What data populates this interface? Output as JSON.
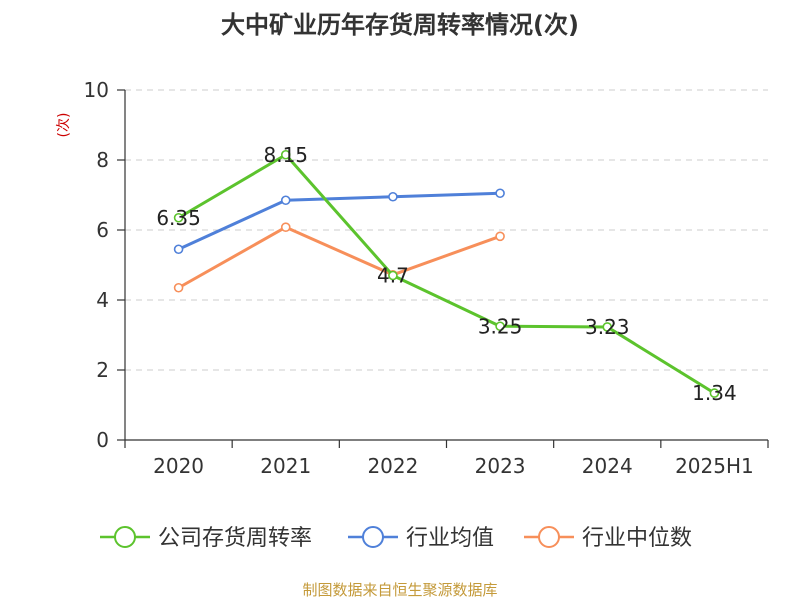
{
  "chart_data": {
    "type": "line",
    "title": "大中矿业历年存货周转率情况(次)",
    "ylabel": "(次)",
    "categories": [
      "2020",
      "2021",
      "2022",
      "2023",
      "2024",
      "2025H1"
    ],
    "ylim": [
      0,
      10
    ],
    "yticks": [
      "0",
      "2",
      "4",
      "6",
      "8",
      "10"
    ],
    "grid": true,
    "legend_position": "bottom",
    "series": [
      {
        "name": "公司存货周转率",
        "color": "#5cc32d",
        "values": [
          6.35,
          8.15,
          4.7,
          3.25,
          3.23,
          1.34
        ],
        "labels": [
          "6.35",
          "8.15",
          "4.7",
          "3.25",
          "3.23",
          "1.34"
        ]
      },
      {
        "name": "行业均值",
        "color": "#4f80d9",
        "values": [
          5.45,
          6.85,
          6.95,
          7.05,
          null,
          null
        ]
      },
      {
        "name": "行业中位数",
        "color": "#f78f5a",
        "values": [
          4.35,
          6.08,
          4.72,
          5.82,
          null,
          null
        ]
      }
    ],
    "ylabel_color": "#cc0000"
  },
  "source": {
    "text": "制图数据来自恒生聚源数据库",
    "color": "#c49a3a"
  }
}
